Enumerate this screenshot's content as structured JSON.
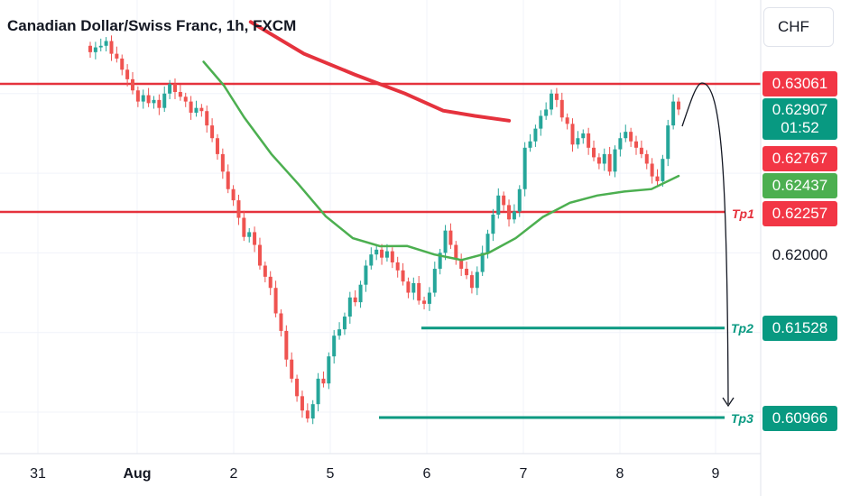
{
  "header": {
    "symbol_title": "Canadian Dollar/Swiss Franc, 1h, FXCM",
    "currency": "CHF"
  },
  "colors": {
    "up": "#26a69a",
    "down": "#ef5350",
    "resistance": "#e5323d",
    "target": "#089981",
    "ma_slow": "#e5323d",
    "ma_fast": "#4caf50",
    "grid": "#f0f3fa"
  },
  "price_axis": {
    "resistance": "0.63061",
    "current_price": "0.62907",
    "countdown": "01:52",
    "ma_slow_value": "0.62767",
    "ma_fast_value": "0.62437",
    "tp1": "0.62257",
    "level_062": "0.62000",
    "tp2": "0.61528",
    "tp3": "0.60966"
  },
  "targets": {
    "tp1": "Tp1",
    "tp2": "Tp2",
    "tp3": "Tp3"
  },
  "chart_data": {
    "type": "candlestick",
    "title": "Canadian Dollar/Swiss Franc, 1h, FXCM",
    "x_ticks": [
      "31",
      "Aug",
      "2",
      "5",
      "6",
      "7",
      "8",
      "9"
    ],
    "price_range": [
      0.6055,
      0.6335
    ],
    "resistance": 0.63061,
    "targets": [
      {
        "name": "Tp1",
        "value": 0.62257
      },
      {
        "name": "Tp2",
        "value": 0.61528
      },
      {
        "name": "Tp3",
        "value": 0.60966
      }
    ],
    "moving_averages": [
      {
        "color": "red",
        "points": [
          [
            0.396,
            0.6345
          ],
          [
            0.48,
            0.6325
          ],
          [
            0.56,
            0.6312
          ],
          [
            0.64,
            0.63
          ],
          [
            0.7,
            0.62893
          ],
          [
            0.75,
            0.6286
          ],
          [
            0.804,
            0.6283
          ]
        ]
      },
      {
        "color": "green",
        "points": [
          [
            0.3,
            0.632
          ],
          [
            0.33,
            0.6305
          ],
          [
            0.36,
            0.6285
          ],
          [
            0.4,
            0.6262
          ],
          [
            0.44,
            0.6243
          ],
          [
            0.48,
            0.6223
          ],
          [
            0.52,
            0.62092
          ],
          [
            0.56,
            0.62042
          ],
          [
            0.6,
            0.62043
          ],
          [
            0.64,
            0.6199
          ],
          [
            0.68,
            0.61955
          ],
          [
            0.72,
            0.62
          ],
          [
            0.76,
            0.62092
          ],
          [
            0.8,
            0.62225
          ],
          [
            0.84,
            0.62315
          ],
          [
            0.88,
            0.6236
          ],
          [
            0.92,
            0.62385
          ],
          [
            0.96,
            0.624
          ],
          [
            1.0,
            0.62483
          ]
        ]
      }
    ],
    "candle_closes": [
      0.6326,
      0.6329,
      0.633,
      0.6333,
      0.6325,
      0.6322,
      0.6315,
      0.6309,
      0.6302,
      0.6295,
      0.6299,
      0.6294,
      0.6296,
      0.6291,
      0.63,
      0.6306,
      0.6301,
      0.6298,
      0.6295,
      0.6288,
      0.6291,
      0.6289,
      0.628,
      0.6272,
      0.6262,
      0.6251,
      0.624,
      0.6233,
      0.6222,
      0.621,
      0.6213,
      0.6205,
      0.6192,
      0.6185,
      0.6178,
      0.6162,
      0.6151,
      0.6133,
      0.6121,
      0.611,
      0.6101,
      0.6096,
      0.6105,
      0.6121,
      0.6118,
      0.6135,
      0.6148,
      0.6152,
      0.616,
      0.6172,
      0.6169,
      0.618,
      0.6192,
      0.6199,
      0.6202,
      0.6197,
      0.6201,
      0.6194,
      0.6189,
      0.6182,
      0.6175,
      0.6181,
      0.617,
      0.6168,
      0.6175,
      0.619,
      0.62,
      0.6214,
      0.6205,
      0.6196,
      0.619,
      0.6186,
      0.6178,
      0.6188,
      0.62,
      0.6212,
      0.6224,
      0.6236,
      0.623,
      0.6221,
      0.6226,
      0.624,
      0.6266,
      0.627,
      0.6278,
      0.6286,
      0.629,
      0.63,
      0.6296,
      0.6285,
      0.6281,
      0.6268,
      0.6272,
      0.6275,
      0.6266,
      0.626,
      0.6256,
      0.6262,
      0.6251,
      0.6265,
      0.6272,
      0.6276,
      0.627,
      0.6266,
      0.6262,
      0.6256,
      0.6248,
      0.6245,
      0.6259,
      0.628,
      0.6295,
      0.629
    ]
  }
}
